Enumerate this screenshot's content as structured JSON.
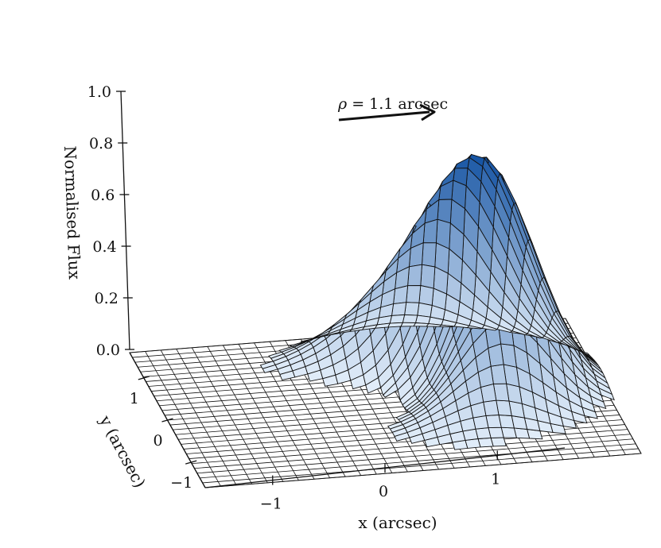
{
  "chart_data": {
    "type": "surface3d",
    "title": "",
    "zlabel": "Normalised Flux",
    "xlabel": "x (arcsec)",
    "ylabel": "y (arcsec)",
    "zlim": [
      0.0,
      1.0
    ],
    "z_ticks": [
      "0.0",
      "0.2",
      "0.4",
      "0.6",
      "0.8",
      "1.0"
    ],
    "x_ticks": [
      "−1",
      "0",
      "1"
    ],
    "y_ticks": [
      "1",
      "0",
      "−1"
    ],
    "x_range": [
      -1.6,
      1.6
    ],
    "y_range": [
      -1.6,
      1.6
    ],
    "colormap": "Blues",
    "peak_value": 0.88,
    "annotation": {
      "symbol": "ρ",
      "text": " = 1.1 arcsec"
    },
    "grid": true
  }
}
